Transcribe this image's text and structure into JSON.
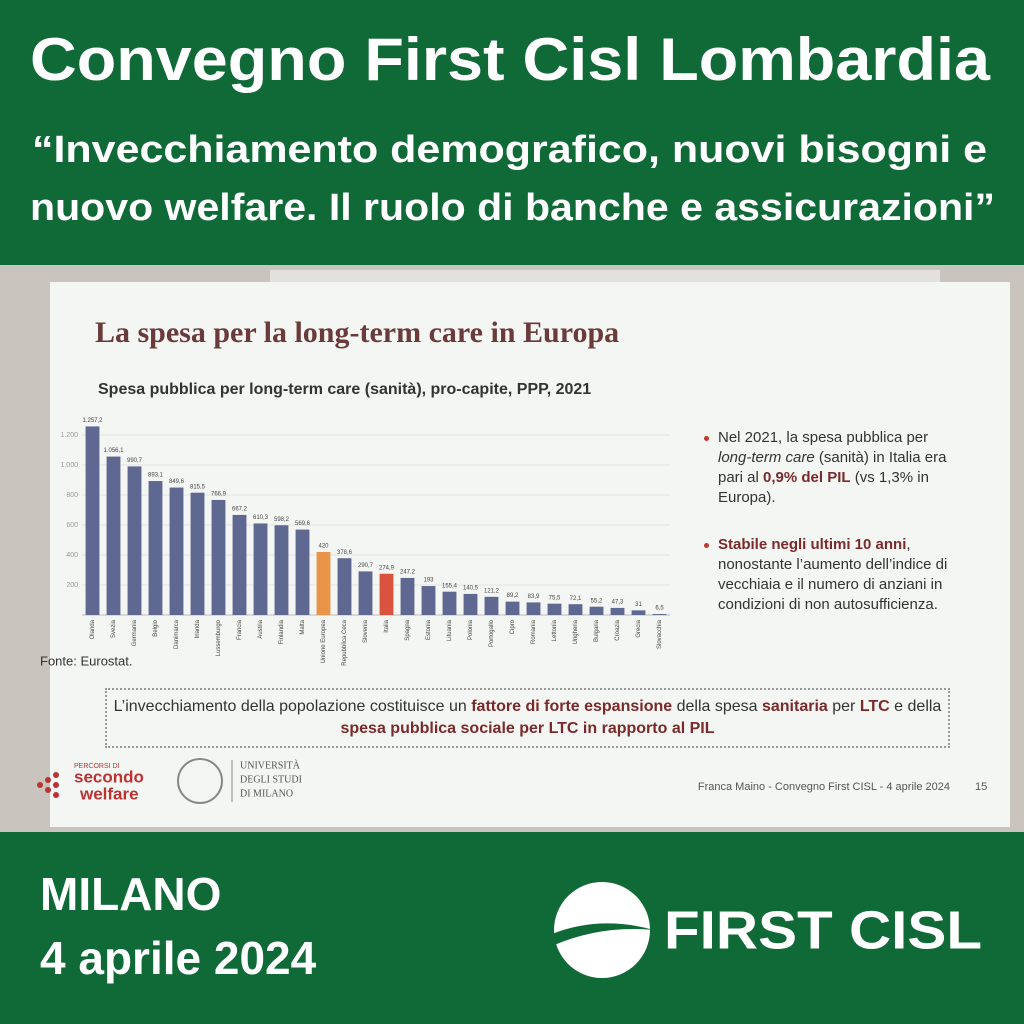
{
  "header": {
    "title": "Convegno First Cisl Lombardia",
    "subtitle": [
      "“Invecchiamento demografico, nuovi bisogni e",
      "nuovo welfare. Il ruolo di banche e assicurazioni”"
    ]
  },
  "slide": {
    "title": "La spesa per la long-term care in Europa",
    "source": "Fonte: Eurostat.",
    "bullets": [
      [
        "Nel 2021, la spesa pubblica per ",
        "long-term care",
        " (sanità) in Italia era pari al ",
        "0,9% del PIL",
        " (vs 1,3% in Europa)."
      ],
      [
        "Stabile negli ultimi 10 anni",
        ", nonostante l’aumento dell’indice di vecchiaia e il numero di anziani in condizioni di non autosufficienza."
      ]
    ],
    "callout": [
      "L’invecchiamento della popolazione costituisce un ",
      "fattore di forte espansione",
      " della spesa ",
      "sanitaria",
      " per ",
      "LTC",
      " e della ",
      "spesa pubblica sociale per LTC in rapporto al PIL"
    ],
    "logos": {
      "secondo_welfare": [
        "PERCORSI DI",
        "secondo",
        "welfare"
      ],
      "university": [
        "UNIVERSITÀ",
        "DEGLI STUDI",
        "DI MILANO"
      ]
    },
    "footer": "Franca Maino - Convegno First CISL - 4 aprile 2024",
    "page": "15"
  },
  "chart_data": {
    "type": "bar",
    "title": "Spesa pubblica per long-term care (sanità), pro-capite, PPP, 2021",
    "categories": [
      "Olanda",
      "Svezia",
      "Germania",
      "Belgio",
      "Danimarca",
      "Irlanda",
      "Lussemburgo",
      "Francia",
      "Austria",
      "Finlandia",
      "Malta",
      "Unione Europea",
      "Repubblica Ceca",
      "Slovenia",
      "Italia",
      "Spagna",
      "Estonia",
      "Lituania",
      "Polonia",
      "Portogallo",
      "Cipro",
      "Romania",
      "Lettonia",
      "Ungheria",
      "Bulgaria",
      "Croazia",
      "Grecia",
      "Slovacchia"
    ],
    "values": [
      1257.2,
      1056.1,
      990.7,
      893.1,
      849.6,
      815.5,
      766.9,
      667.2,
      610.3,
      598.2,
      569.6,
      420,
      378.6,
      290.7,
      274.9,
      247.2,
      193,
      155.4,
      140.5,
      121.2,
      89.2,
      83.9,
      75.5,
      72.1,
      55.2,
      47.3,
      31,
      6.5
    ],
    "value_labels": [
      "1.257,2",
      "1.056,1",
      "990,7",
      "893,1",
      "849,6",
      "815,5",
      "766,9",
      "667,2",
      "610,3",
      "598,2",
      "569,6",
      "420",
      "378,6",
      "290,7",
      "274,9",
      "247,2",
      "193",
      "155,4",
      "140,5",
      "121,2",
      "89,2",
      "83,9",
      "75,5",
      "72,1",
      "55,2",
      "47,3",
      "31",
      "6,5"
    ],
    "colors": [
      "#5e6890",
      "#5e6890",
      "#5e6890",
      "#5e6890",
      "#5e6890",
      "#5e6890",
      "#5e6890",
      "#5e6890",
      "#5e6890",
      "#5e6890",
      "#5e6890",
      "#e8954a",
      "#5e6890",
      "#5e6890",
      "#d9533f",
      "#5e6890",
      "#5e6890",
      "#5e6890",
      "#5e6890",
      "#5e6890",
      "#5e6890",
      "#5e6890",
      "#5e6890",
      "#5e6890",
      "#5e6890",
      "#5e6890",
      "#5e6890",
      "#5e6890"
    ],
    "ylim": [
      0,
      1300
    ],
    "yticks": [
      200,
      400,
      600,
      800,
      {
        "value": 1000,
        "label": "1.000"
      },
      {
        "value": 1200,
        "label": "1.200"
      }
    ],
    "grid": true
  },
  "footer": {
    "city": "MILANO",
    "date": "4 aprile 2024",
    "logo": "FIRST CISL"
  }
}
